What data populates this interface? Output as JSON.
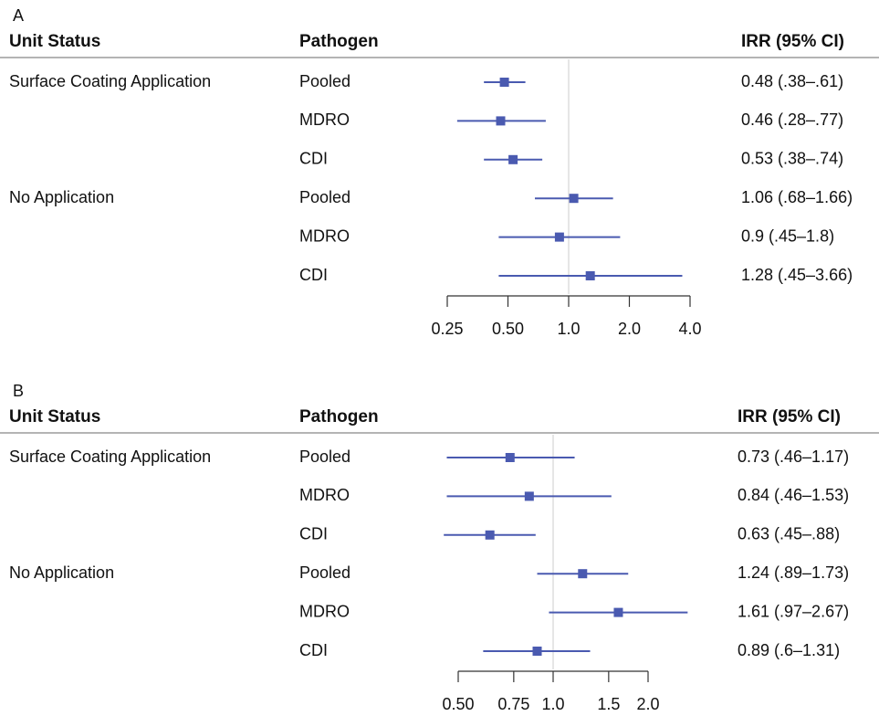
{
  "chart_data": [
    {
      "type": "forest",
      "panel": "A",
      "columns": [
        "Unit Status",
        "Pathogen",
        "IRR (95% CI)"
      ],
      "color": "#4a5ab0",
      "log": true,
      "refline": 1,
      "xlim": [
        0.25,
        4
      ],
      "xticks": [
        0.25,
        {
          "value": 0.5,
          "label": "0.50"
        },
        {
          "value": 1,
          "label": "1.0"
        },
        {
          "value": 2,
          "label": "2.0"
        },
        {
          "value": 4,
          "label": "4.0"
        }
      ],
      "groups": [
        {
          "name": "Surface Coating Application",
          "rows": [
            {
              "pathogen": "Pooled",
              "estimate": 0.48,
              "lower": 0.38,
              "upper": 0.61,
              "label": "0.48 (.38–.61)"
            },
            {
              "pathogen": "MDRO",
              "estimate": 0.46,
              "lower": 0.28,
              "upper": 0.77,
              "label": "0.46 (.28–.77)"
            },
            {
              "pathogen": "CDI",
              "estimate": 0.53,
              "lower": 0.38,
              "upper": 0.74,
              "label": "0.53 (.38–.74)"
            }
          ]
        },
        {
          "name": "No Application",
          "rows": [
            {
              "pathogen": "Pooled",
              "estimate": 1.06,
              "lower": 0.68,
              "upper": 1.66,
              "label": "1.06 (.68–1.66)"
            },
            {
              "pathogen": "MDRO",
              "estimate": 0.9,
              "lower": 0.45,
              "upper": 1.8,
              "label": "0.9 (.45–1.8)"
            },
            {
              "pathogen": "CDI",
              "estimate": 1.28,
              "lower": 0.45,
              "upper": 3.66,
              "label": "1.28 (.45–3.66)"
            }
          ]
        }
      ]
    },
    {
      "type": "forest",
      "panel": "B",
      "columns": [
        "Unit Status",
        "Pathogen",
        "IRR (95% CI)"
      ],
      "color": "#4a5ab0",
      "log": true,
      "refline": 1,
      "xlim": [
        0.5,
        2
      ],
      "xticks": [
        {
          "value": 0.5,
          "label": "0.50"
        },
        0.75,
        {
          "value": 1,
          "label": "1.0"
        },
        1.5,
        {
          "value": 2,
          "label": "2.0"
        }
      ],
      "groups": [
        {
          "name": "Surface Coating Application",
          "rows": [
            {
              "pathogen": "Pooled",
              "estimate": 0.73,
              "lower": 0.46,
              "upper": 1.17,
              "label": "0.73 (.46–1.17)"
            },
            {
              "pathogen": "MDRO",
              "estimate": 0.84,
              "lower": 0.46,
              "upper": 1.53,
              "label": "0.84 (.46–1.53)"
            },
            {
              "pathogen": "CDI",
              "estimate": 0.63,
              "lower": 0.45,
              "upper": 0.88,
              "label": "0.63 (.45–.88)"
            }
          ]
        },
        {
          "name": "No Application",
          "rows": [
            {
              "pathogen": "Pooled",
              "estimate": 1.24,
              "lower": 0.89,
              "upper": 1.73,
              "label": "1.24 (.89–1.73)"
            },
            {
              "pathogen": "MDRO",
              "estimate": 1.61,
              "lower": 0.97,
              "upper": 2.67,
              "label": "1.61 (.97–2.67)"
            },
            {
              "pathogen": "CDI",
              "estimate": 0.89,
              "lower": 0.6,
              "upper": 1.31,
              "label": "0.89 (.6–1.31)"
            }
          ]
        }
      ]
    }
  ]
}
